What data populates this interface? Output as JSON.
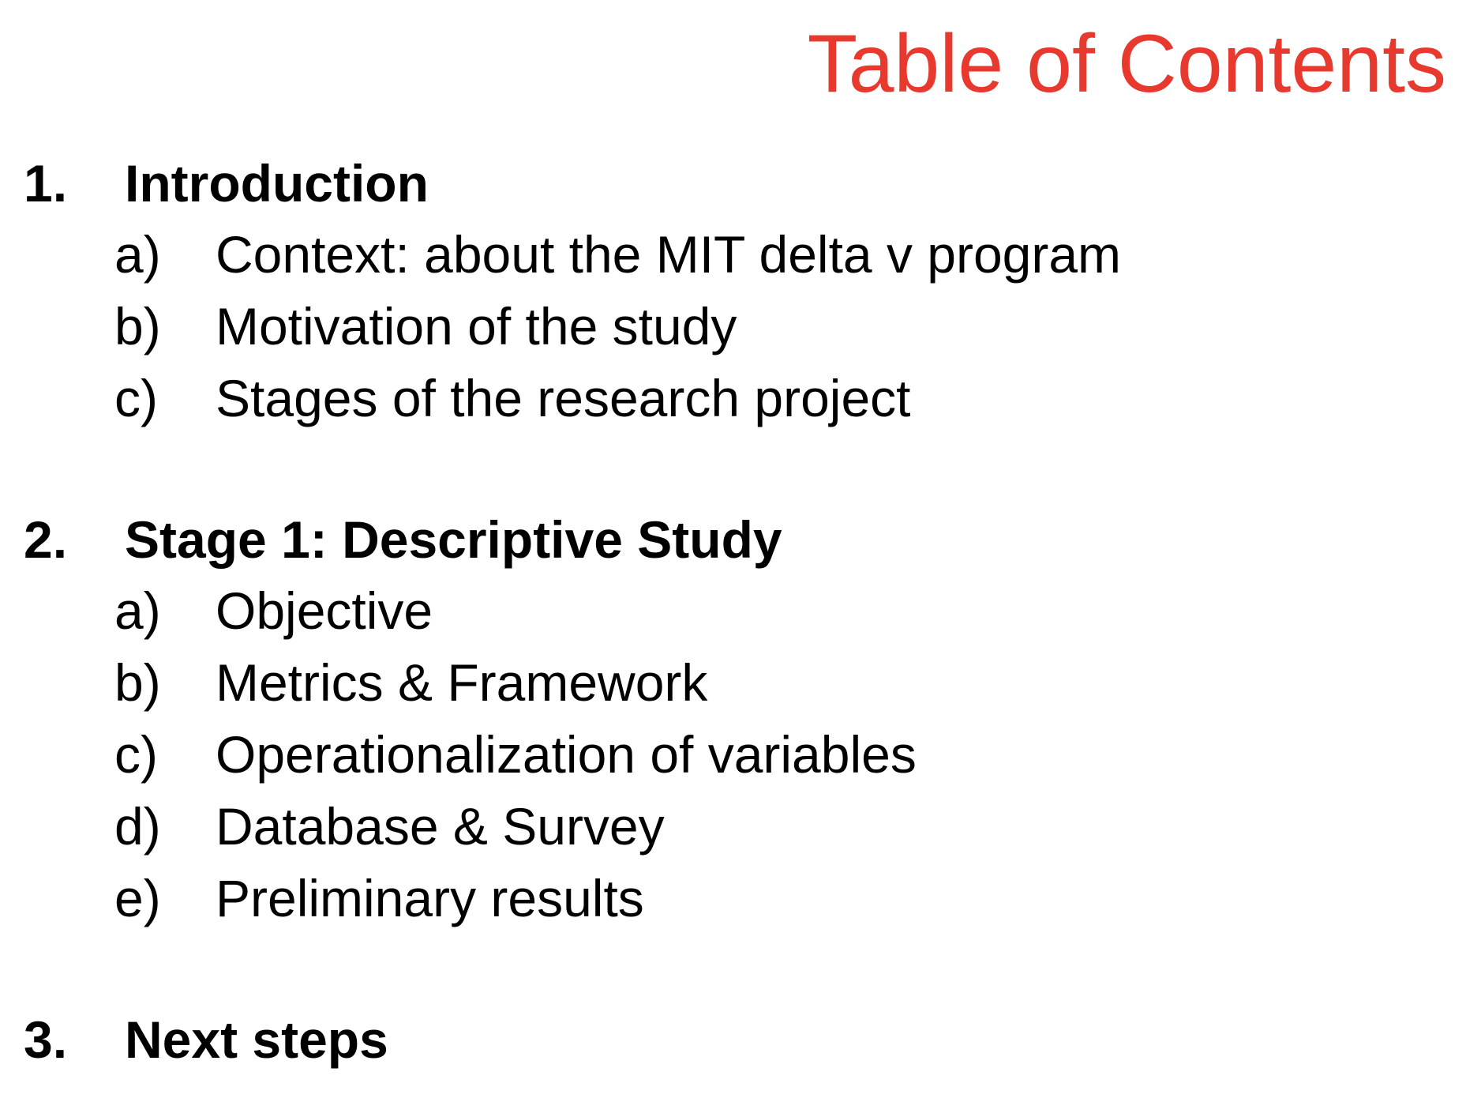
{
  "title": {
    "text": "Table of Contents",
    "color": "#e8392f"
  },
  "sections": [
    {
      "number": "1.",
      "label": "Introduction",
      "items": [
        {
          "letter": "a)",
          "label": "Context: about the MIT delta v program"
        },
        {
          "letter": "b)",
          "label": "Motivation of the study"
        },
        {
          "letter": "c)",
          "label": "Stages of the research project"
        }
      ]
    },
    {
      "number": "2.",
      "label": "Stage 1: Descriptive Study",
      "items": [
        {
          "letter": "a)",
          "label": "Objective"
        },
        {
          "letter": "b)",
          "label": "Metrics & Framework"
        },
        {
          "letter": "c)",
          "label": "Operationalization of variables"
        },
        {
          "letter": "d)",
          "label": "Database & Survey"
        },
        {
          "letter": "e)",
          "label": "Preliminary results"
        }
      ]
    },
    {
      "number": "3.",
      "label": "Next steps",
      "items": []
    }
  ]
}
